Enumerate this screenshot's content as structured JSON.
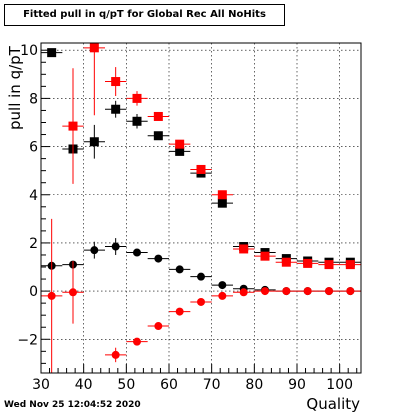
{
  "chart_data": {
    "type": "scatter",
    "title": "Fitted pull in q/pT for Global Rec All NoHits",
    "xlabel": "Quality",
    "ylabel": "pull in q/pT",
    "xlim": [
      30,
      105
    ],
    "ylim": [
      -3.4,
      10.3
    ],
    "xticks": [
      30,
      40,
      50,
      60,
      70,
      80,
      90,
      100
    ],
    "yticks": [
      -2,
      0,
      2,
      4,
      6,
      8,
      10
    ],
    "ytick_labels": [
      "−2",
      "0",
      "2",
      "4",
      "6",
      "8",
      "10"
    ],
    "grid": true,
    "series": [
      {
        "marker": "square",
        "color": "#000000",
        "points": [
          {
            "x": 32.5,
            "y": 9.9,
            "err": 0.05
          },
          {
            "x": 37.5,
            "y": 5.9,
            "err": 0.4
          },
          {
            "x": 42.5,
            "y": 6.2,
            "err": 0.7
          },
          {
            "x": 47.5,
            "y": 7.55,
            "err": 0.35
          },
          {
            "x": 52.5,
            "y": 7.05,
            "err": 0.3
          },
          {
            "x": 57.5,
            "y": 6.45,
            "err": 0.15
          },
          {
            "x": 62.5,
            "y": 5.8,
            "err": 0.15
          },
          {
            "x": 67.5,
            "y": 4.9,
            "err": 0.1
          },
          {
            "x": 72.5,
            "y": 3.65,
            "err": 0.1
          },
          {
            "x": 77.5,
            "y": 1.85,
            "err": 0.05
          },
          {
            "x": 82.5,
            "y": 1.6,
            "err": 0.05
          },
          {
            "x": 87.5,
            "y": 1.35,
            "err": 0.05
          },
          {
            "x": 92.5,
            "y": 1.25,
            "err": 0.05
          },
          {
            "x": 97.5,
            "y": 1.2,
            "err": 0.05
          },
          {
            "x": 102.5,
            "y": 1.2,
            "err": 0.05
          }
        ]
      },
      {
        "marker": "square",
        "color": "#ff0000",
        "points": [
          {
            "x": 37.5,
            "y": 6.85,
            "err": 2.4
          },
          {
            "x": 42.5,
            "y": 10.1,
            "err": 2.8
          },
          {
            "x": 47.5,
            "y": 8.7,
            "err": 0.6
          },
          {
            "x": 52.5,
            "y": 8.0,
            "err": 0.3
          },
          {
            "x": 57.5,
            "y": 7.25,
            "err": 0.15
          },
          {
            "x": 62.5,
            "y": 6.1,
            "err": 0.15
          },
          {
            "x": 67.5,
            "y": 5.05,
            "err": 0.1
          },
          {
            "x": 72.5,
            "y": 4.0,
            "err": 0.1
          },
          {
            "x": 77.5,
            "y": 1.75,
            "err": 0.05
          },
          {
            "x": 82.5,
            "y": 1.45,
            "err": 0.05
          },
          {
            "x": 87.5,
            "y": 1.2,
            "err": 0.05
          },
          {
            "x": 92.5,
            "y": 1.15,
            "err": 0.05
          },
          {
            "x": 97.5,
            "y": 1.1,
            "err": 0.05
          },
          {
            "x": 102.5,
            "y": 1.1,
            "err": 0.05
          }
        ]
      },
      {
        "marker": "circle",
        "color": "#000000",
        "points": [
          {
            "x": 32.5,
            "y": 1.05,
            "err": 0.1
          },
          {
            "x": 37.5,
            "y": 1.1,
            "err": 0.15
          },
          {
            "x": 42.5,
            "y": 1.7,
            "err": 0.35
          },
          {
            "x": 47.5,
            "y": 1.85,
            "err": 0.35
          },
          {
            "x": 52.5,
            "y": 1.6,
            "err": 0.1
          },
          {
            "x": 57.5,
            "y": 1.35,
            "err": 0.05
          },
          {
            "x": 62.5,
            "y": 0.9,
            "err": 0.05
          },
          {
            "x": 67.5,
            "y": 0.6,
            "err": 0.05
          },
          {
            "x": 72.5,
            "y": 0.25,
            "err": 0.05
          },
          {
            "x": 77.5,
            "y": 0.1,
            "err": 0.05
          },
          {
            "x": 82.5,
            "y": 0.05,
            "err": 0.05
          },
          {
            "x": 87.5,
            "y": 0.0,
            "err": 0.05
          },
          {
            "x": 92.5,
            "y": 0.0,
            "err": 0.05
          },
          {
            "x": 97.5,
            "y": 0.0,
            "err": 0.05
          },
          {
            "x": 102.5,
            "y": 0.0,
            "err": 0.05
          }
        ]
      },
      {
        "marker": "circle",
        "color": "#ff0000",
        "points": [
          {
            "x": 32.5,
            "y": -0.2,
            "err": 3.2
          },
          {
            "x": 37.5,
            "y": -0.05,
            "err": 1.3
          },
          {
            "x": 47.5,
            "y": -2.65,
            "err": 0.3
          },
          {
            "x": 52.5,
            "y": -2.1,
            "err": 0.15
          },
          {
            "x": 57.5,
            "y": -1.45,
            "err": 0.1
          },
          {
            "x": 62.5,
            "y": -0.85,
            "err": 0.05
          },
          {
            "x": 67.5,
            "y": -0.45,
            "err": 0.05
          },
          {
            "x": 72.5,
            "y": -0.2,
            "err": 0.05
          },
          {
            "x": 77.5,
            "y": -0.05,
            "err": 0.05
          },
          {
            "x": 82.5,
            "y": 0.0,
            "err": 0.05
          },
          {
            "x": 87.5,
            "y": 0.0,
            "err": 0.05
          },
          {
            "x": 92.5,
            "y": 0.0,
            "err": 0.05
          },
          {
            "x": 97.5,
            "y": 0.0,
            "err": 0.05
          },
          {
            "x": 102.5,
            "y": 0.0,
            "err": 0.05
          }
        ]
      }
    ]
  },
  "footer": {
    "timestamp": "Wed Nov 25 12:04:52 2020"
  }
}
